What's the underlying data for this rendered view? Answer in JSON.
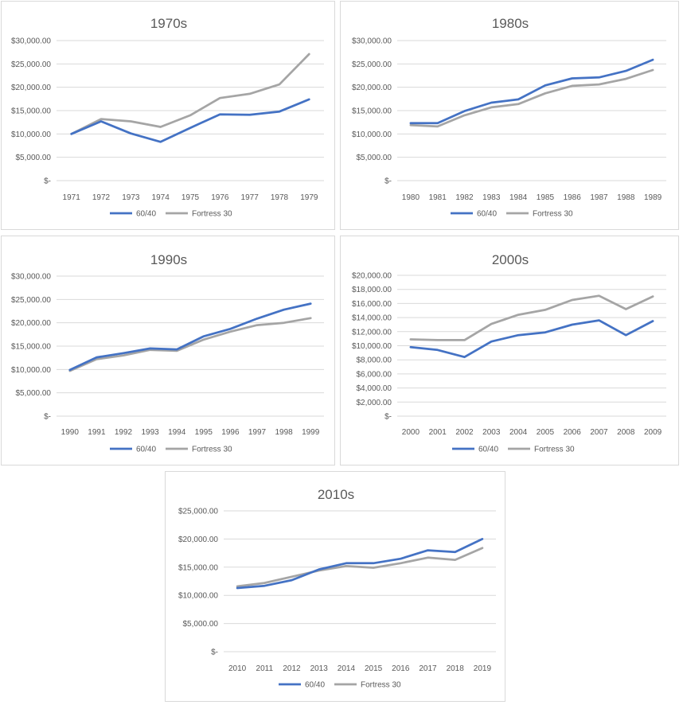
{
  "colors": {
    "series_60_40": "#4472c4",
    "series_fortress_30": "#a5a5a5",
    "grid": "#d9d9d9",
    "text": "#595959"
  },
  "chart_data": [
    {
      "type": "line",
      "title": "1970s",
      "categories": [
        "1971",
        "1972",
        "1973",
        "1974",
        "1975",
        "1976",
        "1977",
        "1978",
        "1979"
      ],
      "y_ticks": [
        "$30,000.00",
        "$25,000.00",
        "$20,000.00",
        "$15,000.00",
        "$10,000.00",
        "$5,000.00",
        "$-"
      ],
      "ylim": [
        0,
        30000
      ],
      "grid": true,
      "legend": "bottom",
      "series": [
        {
          "name": "60/40",
          "values": [
            10000,
            12700,
            10100,
            8300,
            11300,
            14200,
            14100,
            14800,
            17400
          ]
        },
        {
          "name": "Fortress 30",
          "values": [
            10000,
            13200,
            12700,
            11500,
            14000,
            17700,
            18600,
            20600,
            27100
          ]
        }
      ]
    },
    {
      "type": "line",
      "title": "1980s",
      "categories": [
        "1980",
        "1981",
        "1982",
        "1983",
        "1984",
        "1985",
        "1986",
        "1987",
        "1988",
        "1989"
      ],
      "y_ticks": [
        "$30,000.00",
        "$25,000.00",
        "$20,000.00",
        "$15,000.00",
        "$10,000.00",
        "$5,000.00",
        "$-"
      ],
      "ylim": [
        0,
        30000
      ],
      "grid": true,
      "legend": "bottom",
      "series": [
        {
          "name": "60/40",
          "values": [
            12300,
            12300,
            14900,
            16700,
            17400,
            20400,
            21900,
            22100,
            23500,
            25900
          ]
        },
        {
          "name": "Fortress 30",
          "values": [
            11900,
            11600,
            14000,
            15700,
            16400,
            18700,
            20300,
            20600,
            21800,
            23700
          ]
        }
      ]
    },
    {
      "type": "line",
      "title": "1990s",
      "categories": [
        "1990",
        "1991",
        "1992",
        "1993",
        "1994",
        "1995",
        "1996",
        "1997",
        "1998",
        "1999"
      ],
      "y_ticks": [
        "$30,000.00",
        "$25,000.00",
        "$20,000.00",
        "$15,000.00",
        "$10,000.00",
        "$5,000.00",
        "$-"
      ],
      "ylim": [
        0,
        30000
      ],
      "grid": true,
      "legend": "bottom",
      "series": [
        {
          "name": "60/40",
          "values": [
            9900,
            12600,
            13500,
            14500,
            14300,
            17100,
            18700,
            20900,
            22800,
            24100
          ]
        },
        {
          "name": "Fortress 30",
          "values": [
            9700,
            12200,
            13000,
            14200,
            14000,
            16400,
            18100,
            19500,
            20000,
            21000
          ]
        }
      ]
    },
    {
      "type": "line",
      "title": "2000s",
      "categories": [
        "2000",
        "2001",
        "2002",
        "2003",
        "2004",
        "2005",
        "2006",
        "2007",
        "2008",
        "2009"
      ],
      "y_ticks": [
        "$20,000.00",
        "$18,000.00",
        "$16,000.00",
        "$14,000.00",
        "$12,000.00",
        "$10,000.00",
        "$8,000.00",
        "$6,000.00",
        "$4,000.00",
        "$2,000.00",
        "$-"
      ],
      "ylim": [
        0,
        20000
      ],
      "grid": true,
      "legend": "bottom",
      "series": [
        {
          "name": "60/40",
          "values": [
            9800,
            9400,
            8400,
            10600,
            11500,
            11900,
            13000,
            13600,
            11500,
            13500
          ]
        },
        {
          "name": "Fortress 30",
          "values": [
            10900,
            10800,
            10800,
            13100,
            14400,
            15100,
            16500,
            17100,
            15200,
            17000
          ]
        }
      ]
    },
    {
      "type": "line",
      "title": "2010s",
      "categories": [
        "2010",
        "2011",
        "2012",
        "2013",
        "2014",
        "2015",
        "2016",
        "2017",
        "2018",
        "2019"
      ],
      "y_ticks": [
        "$25,000.00",
        "$20,000.00",
        "$15,000.00",
        "$10,000.00",
        "$5,000.00",
        "$-"
      ],
      "ylim": [
        0,
        25000
      ],
      "grid": true,
      "legend": "bottom",
      "series": [
        {
          "name": "60/40",
          "values": [
            11300,
            11700,
            12700,
            14600,
            15700,
            15700,
            16500,
            18000,
            17700,
            20000
          ]
        },
        {
          "name": "Fortress 30",
          "values": [
            11600,
            12200,
            13300,
            14400,
            15200,
            14900,
            15700,
            16700,
            16300,
            18400
          ]
        }
      ]
    }
  ]
}
